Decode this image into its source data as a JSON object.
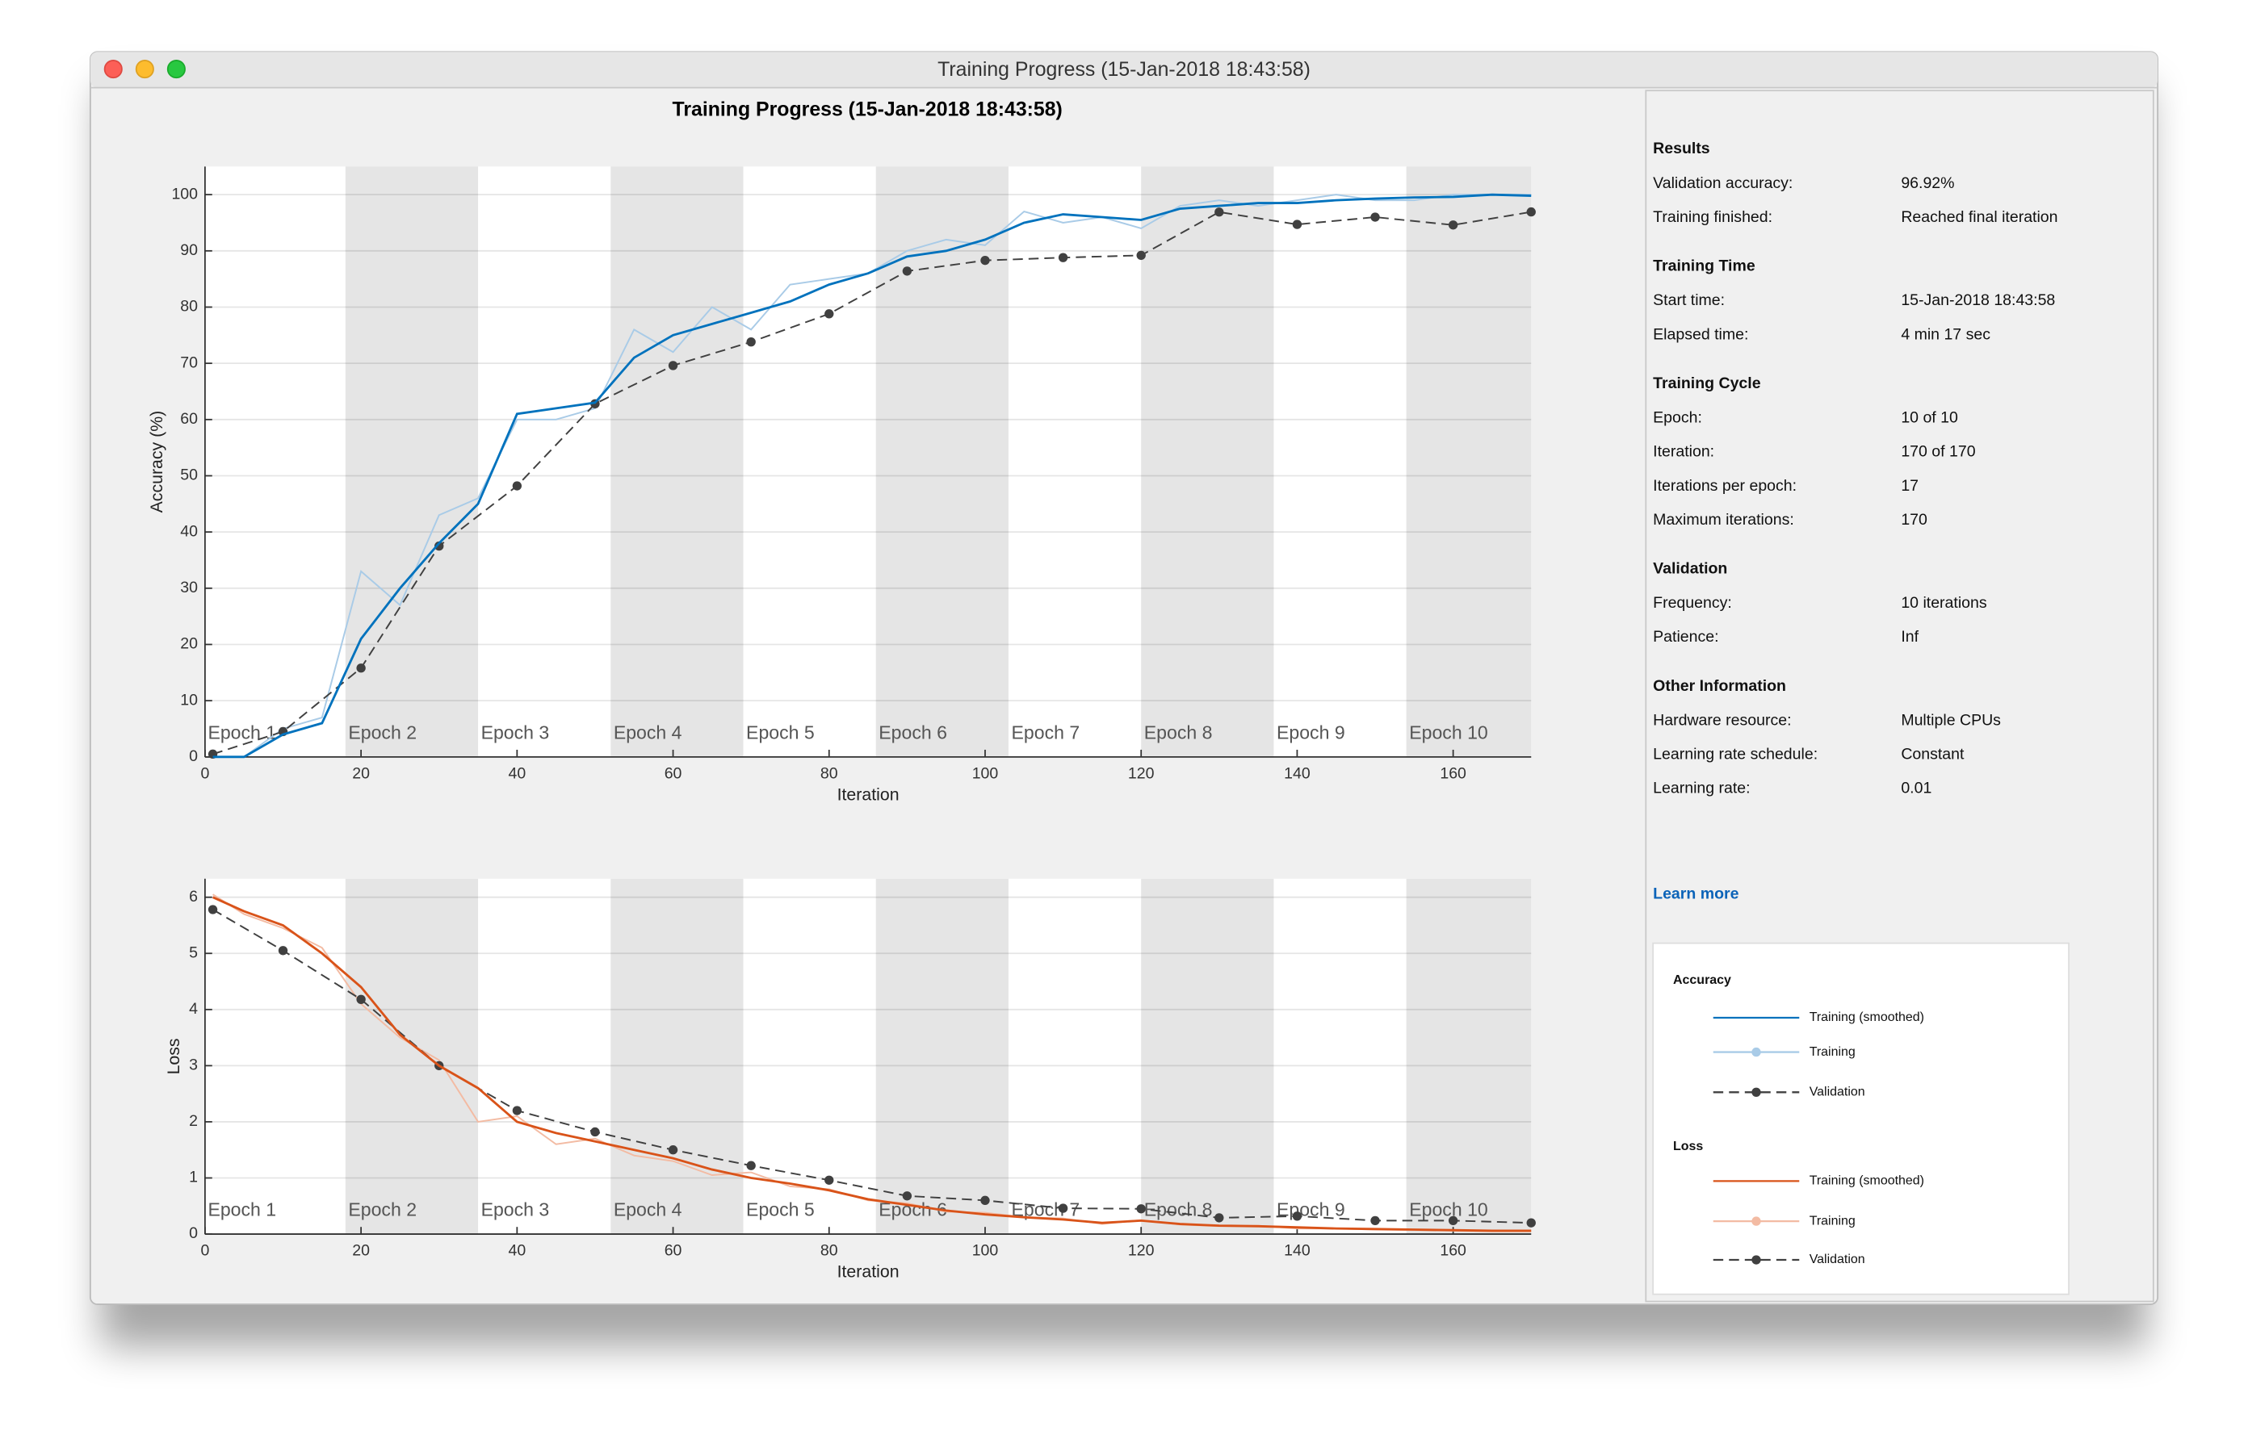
{
  "window": {
    "title": "Training Progress (15-Jan-2018 18:43:58)"
  },
  "figure_title": "Training Progress (15-Jan-2018 18:43:58)",
  "chart_data": [
    {
      "type": "line",
      "ylabel": "Accuracy (%)",
      "xlabel": "Iteration",
      "legend_title": "Accuracy",
      "xlim": [
        0,
        170
      ],
      "ylim": [
        0,
        105
      ],
      "xticks": [
        0,
        20,
        40,
        60,
        80,
        100,
        120,
        140,
        160
      ],
      "yticks": [
        0,
        10,
        20,
        30,
        40,
        50,
        60,
        70,
        80,
        90,
        100
      ],
      "grid": true,
      "epochs": [
        "Epoch 1",
        "Epoch 2",
        "Epoch 3",
        "Epoch 4",
        "Epoch 5",
        "Epoch 6",
        "Epoch 7",
        "Epoch 8",
        "Epoch 9",
        "Epoch 10"
      ],
      "epoch_bounds": [
        0,
        18,
        35,
        52,
        69,
        86,
        103,
        120,
        137,
        154,
        170
      ],
      "series": [
        {
          "name": "Training (smoothed)",
          "color": "#0072bd",
          "dashed": false,
          "markers": false,
          "x": [
            1,
            5,
            10,
            15,
            20,
            25,
            30,
            35,
            40,
            45,
            50,
            55,
            60,
            65,
            70,
            75,
            80,
            85,
            90,
            95,
            100,
            105,
            110,
            115,
            120,
            125,
            130,
            135,
            140,
            145,
            150,
            155,
            160,
            165,
            170
          ],
          "values": [
            0,
            0,
            4,
            6,
            21,
            30,
            38,
            45,
            61,
            62,
            63,
            71,
            75,
            77,
            79,
            81,
            84,
            86,
            89,
            90,
            92,
            95,
            96.5,
            96,
            95.5,
            97.5,
            98,
            98.5,
            98.5,
            99,
            99.3,
            99.5,
            99.6,
            100,
            99.8
          ]
        },
        {
          "name": "Training",
          "color": "#a9cbe7",
          "dashed": false,
          "markers": false,
          "x": [
            1,
            5,
            10,
            15,
            20,
            25,
            30,
            35,
            40,
            45,
            50,
            55,
            60,
            65,
            70,
            75,
            80,
            85,
            90,
            95,
            100,
            105,
            110,
            115,
            120,
            125,
            130,
            135,
            140,
            145,
            150,
            155,
            160,
            165,
            170
          ],
          "values": [
            0,
            0,
            5,
            7,
            33,
            27,
            43,
            46,
            60,
            60,
            62,
            76,
            72,
            80,
            76,
            84,
            85,
            86,
            90,
            92,
            91,
            97,
            95,
            96,
            94,
            98,
            99,
            98,
            99,
            100,
            99,
            99,
            100,
            100,
            100
          ]
        },
        {
          "name": "Validation",
          "color": "#404040",
          "dashed": true,
          "markers": true,
          "x": [
            1,
            10,
            20,
            30,
            40,
            50,
            60,
            70,
            80,
            90,
            100,
            110,
            120,
            130,
            140,
            150,
            160,
            170
          ],
          "values": [
            0.5,
            4.5,
            15.8,
            37.5,
            48.2,
            62.8,
            69.6,
            73.8,
            78.8,
            86.4,
            88.3,
            88.8,
            89.2,
            96.9,
            94.7,
            96.0,
            94.6,
            96.92
          ]
        }
      ]
    },
    {
      "type": "line",
      "ylabel": "Loss",
      "xlabel": "Iteration",
      "legend_title": "Loss",
      "xlim": [
        0,
        170
      ],
      "ylim": [
        0,
        6.33
      ],
      "xticks": [
        0,
        20,
        40,
        60,
        80,
        100,
        120,
        140,
        160
      ],
      "yticks": [
        0,
        1,
        2,
        3,
        4,
        5,
        6
      ],
      "grid": true,
      "epochs": [
        "Epoch 1",
        "Epoch 2",
        "Epoch 3",
        "Epoch 4",
        "Epoch 5",
        "Epoch 6",
        "Epoch 7",
        "Epoch 8",
        "Epoch 9",
        "Epoch 10"
      ],
      "epoch_bounds": [
        0,
        18,
        35,
        52,
        69,
        86,
        103,
        120,
        137,
        154,
        170
      ],
      "series": [
        {
          "name": "Training (smoothed)",
          "color": "#d95319",
          "dashed": false,
          "markers": false,
          "x": [
            1,
            5,
            10,
            15,
            20,
            25,
            30,
            35,
            40,
            45,
            50,
            55,
            60,
            65,
            70,
            75,
            80,
            85,
            90,
            95,
            100,
            105,
            110,
            115,
            120,
            125,
            130,
            135,
            140,
            145,
            150,
            155,
            160,
            165,
            170
          ],
          "values": [
            6.0,
            5.75,
            5.5,
            5.0,
            4.4,
            3.55,
            3.0,
            2.6,
            2.0,
            1.8,
            1.65,
            1.5,
            1.35,
            1.15,
            1.0,
            0.9,
            0.78,
            0.62,
            0.52,
            0.42,
            0.35,
            0.3,
            0.26,
            0.2,
            0.24,
            0.18,
            0.15,
            0.14,
            0.12,
            0.1,
            0.09,
            0.08,
            0.07,
            0.06,
            0.06
          ]
        },
        {
          "name": "Training",
          "color": "#f3bba3",
          "dashed": false,
          "markers": false,
          "x": [
            1,
            5,
            10,
            15,
            20,
            25,
            30,
            35,
            40,
            45,
            50,
            55,
            60,
            65,
            70,
            75,
            80,
            85,
            90,
            95,
            100,
            105,
            110,
            115,
            120,
            125,
            130,
            135,
            140,
            145,
            150,
            155,
            160,
            165,
            170
          ],
          "values": [
            6.05,
            5.7,
            5.45,
            5.1,
            4.1,
            3.5,
            3.1,
            2.0,
            2.1,
            1.6,
            1.7,
            1.4,
            1.3,
            1.05,
            1.1,
            0.85,
            0.8,
            0.6,
            0.55,
            0.4,
            0.38,
            0.3,
            0.28,
            0.18,
            0.25,
            0.17,
            0.14,
            0.15,
            0.1,
            0.1,
            0.08,
            0.07,
            0.06,
            0.05,
            0.05
          ]
        },
        {
          "name": "Validation",
          "color": "#404040",
          "dashed": true,
          "markers": true,
          "x": [
            1,
            10,
            20,
            30,
            40,
            50,
            60,
            70,
            80,
            90,
            100,
            110,
            120,
            130,
            140,
            150,
            160,
            170
          ],
          "values": [
            5.78,
            5.05,
            4.18,
            3.0,
            2.2,
            1.82,
            1.5,
            1.22,
            0.96,
            0.68,
            0.6,
            0.46,
            0.45,
            0.29,
            0.32,
            0.24,
            0.24,
            0.2
          ]
        }
      ]
    }
  ],
  "panel": {
    "sections": [
      {
        "heading": "Results",
        "rows": [
          [
            "Validation accuracy:",
            "96.92%"
          ],
          [
            "Training finished:",
            "Reached final iteration"
          ]
        ]
      },
      {
        "heading": "Training Time",
        "rows": [
          [
            "Start time:",
            "15-Jan-2018 18:43:58"
          ],
          [
            "Elapsed time:",
            "4 min 17 sec"
          ]
        ]
      },
      {
        "heading": "Training Cycle",
        "rows": [
          [
            "Epoch:",
            "10 of 10"
          ],
          [
            "Iteration:",
            "170 of 170"
          ],
          [
            "Iterations per epoch:",
            "17"
          ],
          [
            "Maximum iterations:",
            "170"
          ]
        ]
      },
      {
        "heading": "Validation",
        "rows": [
          [
            "Frequency:",
            "10 iterations"
          ],
          [
            "Patience:",
            "Inf"
          ]
        ]
      },
      {
        "heading": "Other Information",
        "rows": [
          [
            "Hardware resource:",
            "Multiple CPUs"
          ],
          [
            "Learning rate schedule:",
            "Constant"
          ],
          [
            "Learning rate:",
            "0.01"
          ]
        ]
      }
    ],
    "link": "Learn more"
  }
}
